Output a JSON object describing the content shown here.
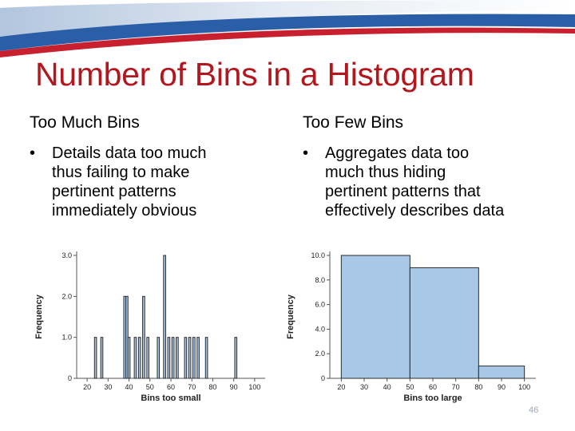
{
  "slide": {
    "title": "Number of Bins in a Histogram",
    "left": {
      "heading": "Too Much Bins",
      "bullet_symbol": "•",
      "bullet_lines": [
        "Details data too much",
        "thus failing to make",
        "pertinent patterns",
        "immediately obvious"
      ]
    },
    "right": {
      "heading": "Too Few Bins",
      "bullet_symbol": "•",
      "bullet_lines": [
        "Aggregates data too",
        "much thus hiding",
        "pertinent patterns that",
        "effectively describes data"
      ]
    },
    "slide_number": "46"
  },
  "colors": {
    "title": "#b3161c",
    "banner_blue": "#2a5fa8",
    "banner_red": "#c8202e",
    "bar_fill": "#a9c8e8",
    "bar_stroke": "#2b2b2b"
  },
  "chart_data": [
    {
      "type": "bar",
      "xlabel": "Bins too small",
      "ylabel": "Frequency",
      "xlim": [
        15,
        105
      ],
      "ylim": [
        0,
        3
      ],
      "xticks": [
        "20",
        "30",
        "40",
        "50",
        "60",
        "70",
        "80",
        "90",
        "100"
      ],
      "yticks": [
        "0",
        "1.0",
        "2.0",
        "3.0"
      ],
      "bin_width": 1,
      "x": [
        24,
        27,
        38,
        39,
        40,
        43,
        45,
        47,
        49,
        54,
        57,
        59,
        61,
        63,
        67,
        69,
        71,
        73,
        77,
        91
      ],
      "values": [
        1,
        1,
        2,
        2,
        1,
        1,
        1,
        2,
        1,
        1,
        3,
        1,
        1,
        1,
        1,
        1,
        1,
        1,
        1,
        1
      ]
    },
    {
      "type": "bar",
      "xlabel": "Bins too large",
      "ylabel": "Frequency",
      "xlim": [
        15,
        105
      ],
      "ylim": [
        0,
        10
      ],
      "xticks": [
        "20",
        "30",
        "40",
        "50",
        "60",
        "70",
        "80",
        "90",
        "100"
      ],
      "yticks": [
        "0",
        "2.0",
        "4.0",
        "6.0",
        "8.0",
        "10.0"
      ],
      "bins": [
        [
          20,
          50
        ],
        [
          50,
          80
        ],
        [
          80,
          100
        ]
      ],
      "values": [
        10,
        9,
        1
      ]
    }
  ]
}
